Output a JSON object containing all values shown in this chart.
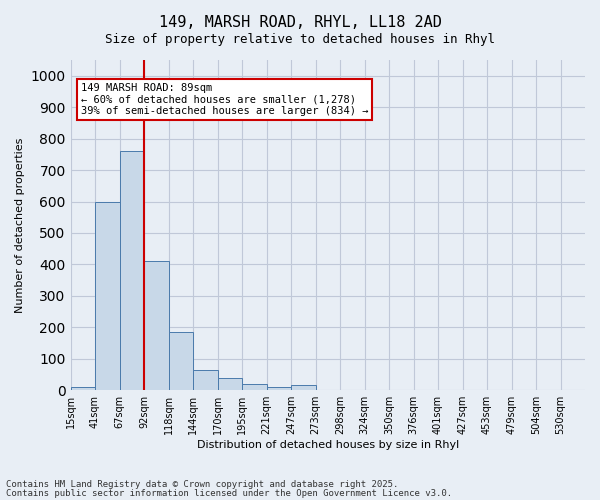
{
  "title_line1": "149, MARSH ROAD, RHYL, LL18 2AD",
  "title_line2": "Size of property relative to detached houses in Rhyl",
  "xlabel": "Distribution of detached houses by size in Rhyl",
  "ylabel": "Number of detached properties",
  "bar_values": [
    10,
    600,
    760,
    410,
    185,
    65,
    40,
    20,
    10,
    15,
    0,
    0,
    0,
    0,
    0,
    0,
    0,
    0,
    0,
    0,
    0
  ],
  "categories": [
    "15sqm",
    "41sqm",
    "67sqm",
    "92sqm",
    "118sqm",
    "144sqm",
    "170sqm",
    "195sqm",
    "221sqm",
    "247sqm",
    "273sqm",
    "298sqm",
    "324sqm",
    "350sqm",
    "376sqm",
    "401sqm",
    "427sqm",
    "453sqm",
    "479sqm",
    "504sqm",
    "530sqm"
  ],
  "bar_color": "#c8d8e8",
  "bar_edge_color": "#4a7aab",
  "vline_color": "#cc0000",
  "vline_x": 2.5,
  "annotation_box_text": "149 MARSH ROAD: 89sqm\n← 60% of detached houses are smaller (1,278)\n39% of semi-detached houses are larger (834) →",
  "annotation_box_color": "#cc0000",
  "annotation_box_fill": "white",
  "ylim": [
    0,
    1050
  ],
  "yticks": [
    0,
    100,
    200,
    300,
    400,
    500,
    600,
    700,
    800,
    900,
    1000
  ],
  "grid_color": "#c0c8d8",
  "bg_color": "#e8eef5",
  "footer_line1": "Contains HM Land Registry data © Crown copyright and database right 2025.",
  "footer_line2": "Contains public sector information licensed under the Open Government Licence v3.0.",
  "fig_width": 6.0,
  "fig_height": 5.0
}
